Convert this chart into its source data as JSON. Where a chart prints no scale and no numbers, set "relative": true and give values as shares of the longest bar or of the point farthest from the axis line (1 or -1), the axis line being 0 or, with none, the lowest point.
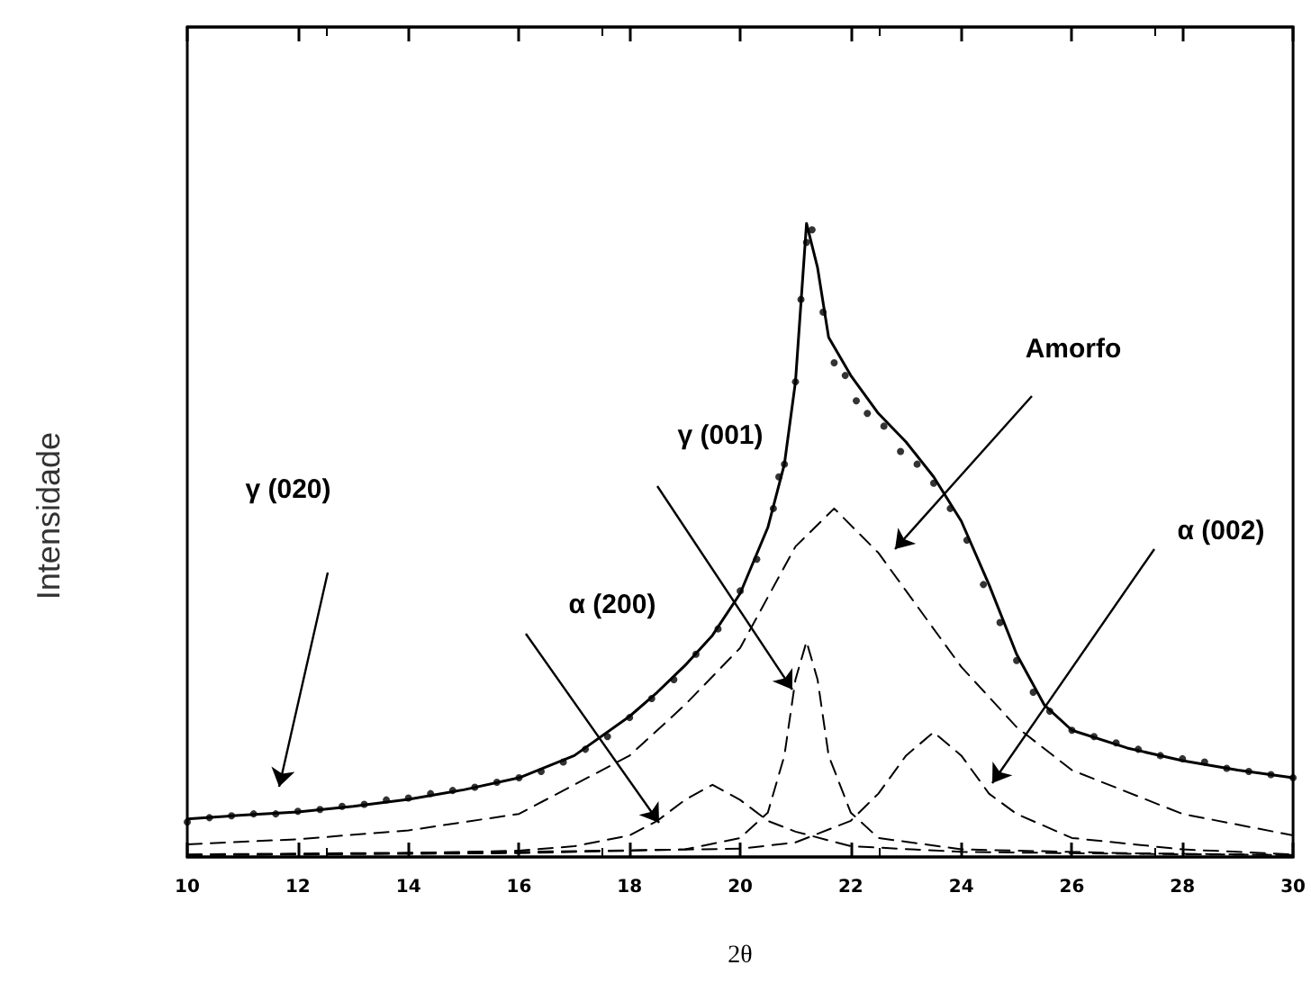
{
  "chart_data": {
    "type": "line",
    "xlabel": "2θ",
    "ylabel": "Intensidade",
    "relative": true,
    "xlim": [
      10,
      30
    ],
    "xticks": [
      10,
      12,
      14,
      16,
      18,
      20,
      22,
      24,
      26,
      28,
      30
    ],
    "grid": false,
    "series": [
      {
        "type": "scatter",
        "marker": "circle",
        "color": "#000000",
        "x": [
          10.0,
          10.4,
          10.8,
          11.2,
          11.6,
          12.0,
          12.4,
          12.8,
          13.2,
          13.6,
          14.0,
          14.4,
          14.8,
          15.2,
          15.6,
          16.0,
          16.4,
          16.8,
          17.2,
          17.6,
          18.0,
          18.4,
          18.8,
          19.2,
          19.6,
          20.0,
          20.3,
          20.6,
          20.7,
          20.8,
          21.0,
          21.1,
          21.2,
          21.3,
          21.5,
          21.7,
          21.9,
          22.1,
          22.3,
          22.6,
          22.9,
          23.2,
          23.5,
          23.8,
          24.1,
          24.4,
          24.7,
          25.0,
          25.3,
          25.6,
          26.0,
          26.4,
          26.8,
          27.2,
          27.6,
          28.0,
          28.4,
          28.8,
          29.2,
          29.6,
          30.0
        ],
        "values": [
          0.055,
          0.062,
          0.065,
          0.068,
          0.068,
          0.072,
          0.075,
          0.08,
          0.083,
          0.09,
          0.093,
          0.1,
          0.105,
          0.11,
          0.118,
          0.125,
          0.135,
          0.15,
          0.17,
          0.19,
          0.22,
          0.25,
          0.28,
          0.32,
          0.36,
          0.42,
          0.47,
          0.55,
          0.6,
          0.62,
          0.75,
          0.88,
          0.97,
          0.99,
          0.86,
          0.78,
          0.76,
          0.72,
          0.7,
          0.68,
          0.64,
          0.62,
          0.59,
          0.55,
          0.5,
          0.43,
          0.37,
          0.31,
          0.26,
          0.23,
          0.2,
          0.19,
          0.18,
          0.17,
          0.16,
          0.155,
          0.15,
          0.14,
          0.135,
          0.13,
          0.125
        ]
      },
      {
        "line_style": "solid",
        "color": "#000000",
        "x": [
          10,
          11,
          12,
          13,
          14,
          15,
          16,
          17,
          18,
          18.5,
          19,
          19.5,
          20,
          20.5,
          20.8,
          21,
          21.2,
          21.4,
          21.6,
          22,
          22.5,
          23,
          23.5,
          24,
          24.5,
          25,
          25.5,
          26,
          27,
          28,
          29,
          30
        ],
        "values": [
          0.06,
          0.066,
          0.071,
          0.08,
          0.091,
          0.106,
          0.125,
          0.16,
          0.222,
          0.26,
          0.302,
          0.35,
          0.416,
          0.52,
          0.62,
          0.75,
          1.0,
          0.93,
          0.82,
          0.76,
          0.7,
          0.655,
          0.6,
          0.53,
          0.43,
          0.32,
          0.24,
          0.2,
          0.172,
          0.152,
          0.137,
          0.125
        ]
      },
      {
        "line_style": "dashed",
        "color": "#000000",
        "x": [
          10,
          12,
          14,
          16,
          18,
          19,
          20,
          21,
          21.7,
          22.5,
          23,
          24,
          25,
          26,
          28,
          30
        ],
        "values": [
          0.02,
          0.028,
          0.042,
          0.068,
          0.16,
          0.24,
          0.33,
          0.49,
          0.55,
          0.48,
          0.42,
          0.3,
          0.205,
          0.137,
          0.068,
          0.034
        ]
      },
      {
        "line_style": "dashed",
        "color": "#000000",
        "x": [
          10,
          14,
          16,
          17,
          18,
          18.5,
          19,
          19.5,
          20,
          20.5,
          21,
          22,
          24,
          27,
          30
        ],
        "values": [
          0.003,
          0.006,
          0.01,
          0.017,
          0.034,
          0.057,
          0.09,
          0.114,
          0.09,
          0.057,
          0.04,
          0.017,
          0.008,
          0.005,
          0.003
        ]
      },
      {
        "line_style": "dashed",
        "color": "#000000",
        "x": [
          10,
          16,
          19,
          20,
          20.5,
          20.8,
          21,
          21.2,
          21.4,
          21.6,
          22,
          22.5,
          24,
          27,
          30
        ],
        "values": [
          0.003,
          0.006,
          0.012,
          0.03,
          0.07,
          0.16,
          0.28,
          0.34,
          0.28,
          0.16,
          0.07,
          0.03,
          0.012,
          0.006,
          0.003
        ]
      },
      {
        "line_style": "dashed",
        "color": "#000000",
        "x": [
          10,
          16,
          20,
          21,
          22,
          22.5,
          23,
          23.5,
          24,
          24.5,
          25,
          26,
          28,
          30
        ],
        "values": [
          0.004,
          0.008,
          0.013,
          0.023,
          0.057,
          0.1,
          0.16,
          0.197,
          0.16,
          0.1,
          0.068,
          0.03,
          0.012,
          0.004
        ]
      }
    ],
    "annotations": [
      "γ (020)",
      "α (200)",
      "γ (001)",
      "Amorfo",
      "α (002)"
    ]
  }
}
